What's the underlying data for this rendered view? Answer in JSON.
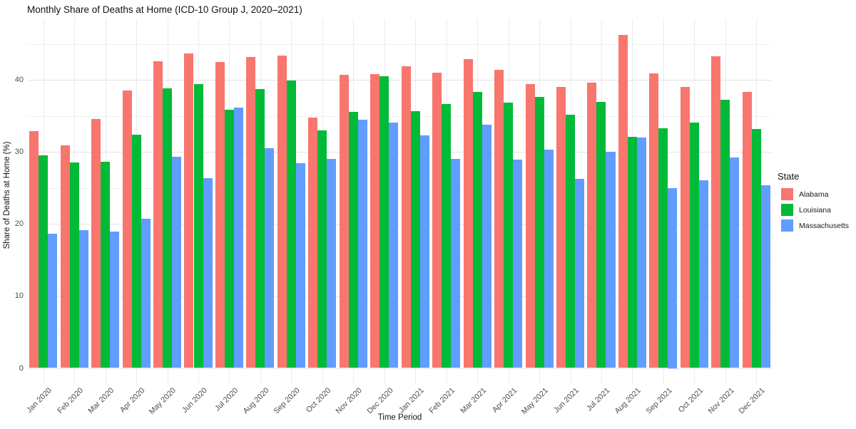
{
  "title": "Monthly Share of Deaths at Home (ICD-10 Group J, 2020–2021)",
  "chart_data": {
    "type": "bar",
    "title": "Monthly Share of Deaths at Home (ICD-10 Group J, 2020–2021)",
    "xlabel": "Time Period",
    "ylabel": "Share of Deaths at Home (%)",
    "legend_title": "State",
    "legend_position": "right",
    "grid": true,
    "ylim": [
      0,
      47.5
    ],
    "yticks": [
      0,
      10,
      20,
      30,
      40
    ],
    "yticks_minor": [
      5,
      15,
      25,
      35,
      45
    ],
    "categories": [
      "Jan 2020",
      "Feb 2020",
      "Mar 2020",
      "Apr 2020",
      "May 2020",
      "Jun 2020",
      "Jul 2020",
      "Aug 2020",
      "Sep 2020",
      "Oct 2020",
      "Nov 2020",
      "Dec 2020",
      "Jan 2021",
      "Feb 2021",
      "Mar 2021",
      "Apr 2021",
      "May 2021",
      "Jun 2021",
      "Jul 2021",
      "Aug 2021",
      "Sep 2021",
      "Oct 2021",
      "Nov 2021",
      "Dec 2021"
    ],
    "series": [
      {
        "name": "Alabama",
        "color": "#F8766D",
        "values": [
          32.9,
          30.9,
          34.6,
          38.5,
          42.6,
          43.7,
          42.5,
          43.2,
          43.4,
          34.8,
          40.7,
          40.8,
          41.9,
          41.0,
          42.9,
          41.4,
          39.4,
          39.0,
          39.6,
          46.2,
          40.9,
          39.0,
          43.3,
          38.3
        ]
      },
      {
        "name": "Louisiana",
        "color": "#00BA38",
        "values": [
          29.5,
          28.5,
          28.6,
          32.4,
          38.8,
          39.4,
          35.9,
          38.7,
          39.9,
          33.0,
          35.6,
          40.5,
          35.7,
          36.6,
          38.3,
          36.8,
          37.6,
          35.2,
          36.9,
          32.1,
          33.3,
          34.1,
          37.2,
          33.2
        ]
      },
      {
        "name": "Massachusetts",
        "color": "#619CFF",
        "values": [
          18.6,
          19.1,
          18.9,
          20.7,
          29.3,
          26.4,
          36.2,
          30.5,
          28.4,
          29.0,
          34.5,
          34.1,
          32.3,
          29.0,
          33.8,
          28.9,
          30.3,
          26.3,
          30.0,
          32.0,
          25.0,
          26.1,
          29.2,
          25.4
        ]
      }
    ]
  }
}
